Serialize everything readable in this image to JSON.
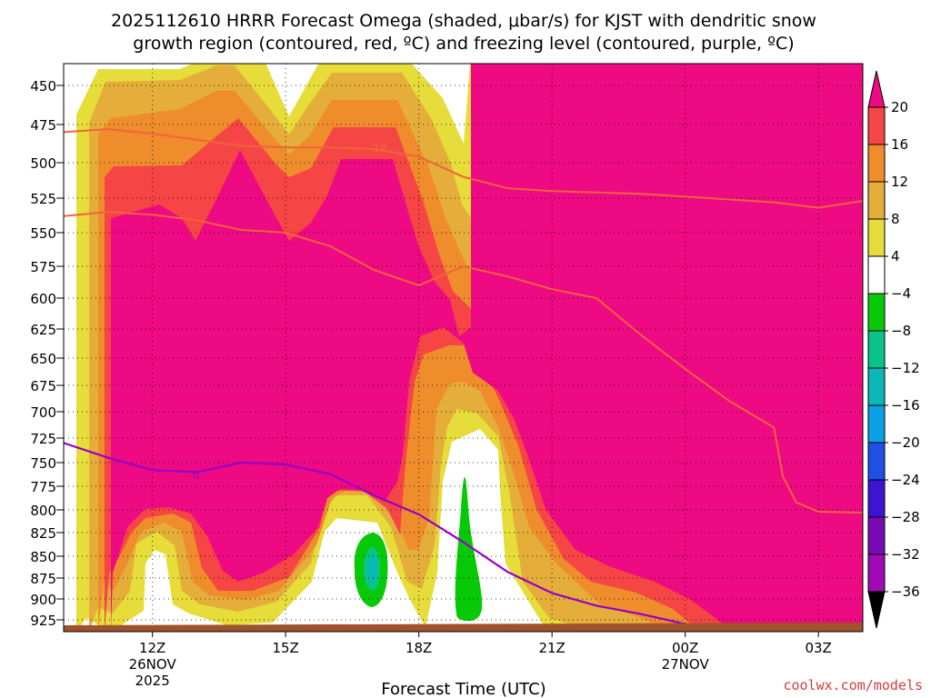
{
  "title_line1": "2025112610 HRRR Forecast Omega (shaded, μbar/s) for KJST with dendritic snow",
  "title_line2": "growth region (contoured, red, ºC) and freezing level (contoured, purple, ºC)",
  "credit": "coolwx.com/models",
  "colors": {
    "pos20": "#ee0a82",
    "pos16": "#f54545",
    "pos12": "#ef8c2c",
    "pos8": "#e5ad3a",
    "pos4": "#e6dc3a",
    "neutral": "#ffffff",
    "neg4": "#08c908",
    "neg8": "#08c48a",
    "neg12": "#0ab8b8",
    "neg16": "#0aa0e6",
    "neg20": "#1e50e6",
    "neg24": "#3c14d2",
    "neg28": "#780ab4",
    "neg32": "#a00ab4",
    "neg36": "#a0a0a0",
    "dgz_contour": "#f0643c",
    "freezing_contour": "#9600c8",
    "terrain": "#a0522d"
  },
  "chart_data": {
    "type": "heatmap",
    "title": "2025112610 HRRR Forecast Omega (shaded, μbar/s) for KJST with dendritic snow growth region (contoured, red, ºC) and freezing level (contoured, purple, ºC)",
    "xlabel": "Forecast Time (UTC)",
    "ylabel": "",
    "x_ticks": [
      {
        "label": "12Z",
        "sub": [
          "26NOV",
          "2025"
        ],
        "hour": 12
      },
      {
        "label": "15Z",
        "sub": [],
        "hour": 15
      },
      {
        "label": "18Z",
        "sub": [],
        "hour": 18
      },
      {
        "label": "21Z",
        "sub": [],
        "hour": 21
      },
      {
        "label": "00Z",
        "sub": [
          "27NOV"
        ],
        "hour": 24
      },
      {
        "label": "03Z",
        "sub": [],
        "hour": 27
      }
    ],
    "xlim": [
      10,
      28
    ],
    "y_ticks": [
      450,
      475,
      500,
      525,
      550,
      575,
      600,
      625,
      650,
      675,
      700,
      725,
      750,
      775,
      800,
      825,
      850,
      875,
      900,
      925
    ],
    "ylim": [
      440,
      935
    ],
    "y_scale": "log-pressure",
    "grid": true,
    "colorbar": {
      "levels": [
        20,
        16,
        12,
        8,
        4,
        -4,
        -8,
        -12,
        -16,
        -20,
        -24,
        -28,
        -32,
        -36
      ],
      "labels": [
        "20",
        "16",
        "12",
        "8",
        "4",
        "−4",
        "−8",
        "−12",
        "−16",
        "−20",
        "−24",
        "−28",
        "−32",
        "−36"
      ]
    },
    "contours": {
      "dgz_label": "18",
      "freezing_label": "0",
      "dgz_upper": [
        [
          10,
          480
        ],
        [
          11,
          478
        ],
        [
          12,
          481
        ],
        [
          13,
          485
        ],
        [
          14,
          489
        ],
        [
          15,
          490
        ],
        [
          16,
          490
        ],
        [
          17,
          491
        ],
        [
          18,
          496
        ],
        [
          19,
          510
        ],
        [
          20,
          518
        ],
        [
          21,
          520
        ],
        [
          22,
          521
        ],
        [
          23,
          522
        ],
        [
          24,
          524
        ],
        [
          25,
          526
        ],
        [
          26,
          528
        ],
        [
          27,
          532
        ],
        [
          28,
          527
        ]
      ],
      "dgz_lower": [
        [
          10,
          538
        ],
        [
          11,
          535
        ],
        [
          12,
          537
        ],
        [
          13,
          541
        ],
        [
          14,
          548
        ],
        [
          15,
          550
        ],
        [
          16,
          560
        ],
        [
          17,
          578
        ],
        [
          18,
          590
        ],
        [
          19,
          575
        ],
        [
          20,
          583
        ],
        [
          21,
          593
        ],
        [
          22,
          600
        ],
        [
          23,
          630
        ],
        [
          24,
          660
        ],
        [
          25,
          690
        ],
        [
          26,
          715
        ],
        [
          26.2,
          765
        ],
        [
          26.5,
          792
        ],
        [
          27,
          802
        ],
        [
          28,
          803
        ]
      ],
      "freezing": [
        [
          10,
          730
        ],
        [
          11,
          745
        ],
        [
          12,
          758
        ],
        [
          13,
          760
        ],
        [
          14,
          750
        ],
        [
          15,
          752
        ],
        [
          16,
          762
        ],
        [
          17,
          785
        ],
        [
          18,
          805
        ],
        [
          19,
          835
        ],
        [
          20,
          868
        ],
        [
          21,
          893
        ],
        [
          22,
          908
        ],
        [
          23,
          918
        ],
        [
          24,
          930
        ]
      ]
    }
  }
}
